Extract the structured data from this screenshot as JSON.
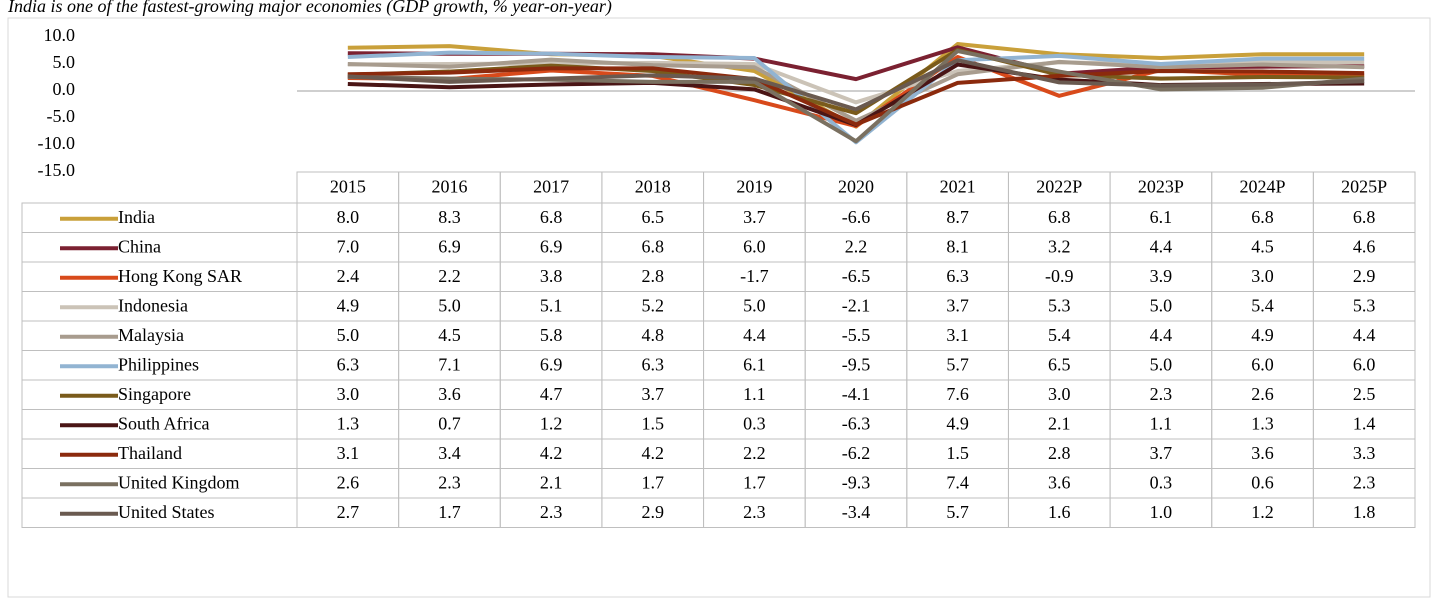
{
  "chart_data": {
    "type": "line",
    "title": "India is one of the fastest-growing major economies (GDP growth, % year-on-year)",
    "categories": [
      "2015",
      "2016",
      "2017",
      "2018",
      "2019",
      "2020",
      "2021",
      "2022P",
      "2023P",
      "2024P",
      "2025P"
    ],
    "ylim": [
      -15,
      10
    ],
    "yticks": [
      {
        "value": -15,
        "label": "-15.0"
      },
      {
        "value": -10,
        "label": "-10.0"
      },
      {
        "value": -5,
        "label": "-5.0"
      },
      {
        "value": 0,
        "label": "0.0"
      },
      {
        "value": 5,
        "label": "5.0"
      },
      {
        "value": 10,
        "label": "10.0"
      }
    ],
    "series": [
      {
        "name": "India",
        "color": "#c9a03a",
        "values": [
          8.0,
          8.3,
          6.8,
          6.5,
          3.7,
          -6.6,
          8.7,
          6.8,
          6.1,
          6.8,
          6.8
        ],
        "value_labels": [
          "8.0",
          "8.3",
          "6.8",
          "6.5",
          "3.7",
          "-6.6",
          "8.7",
          "6.8",
          "6.1",
          "6.8",
          "6.8"
        ]
      },
      {
        "name": "China",
        "color": "#7b2131",
        "values": [
          7.0,
          6.9,
          6.9,
          6.8,
          6.0,
          2.2,
          8.1,
          3.2,
          4.4,
          4.5,
          4.6
        ],
        "value_labels": [
          "7.0",
          "6.9",
          "6.9",
          "6.8",
          "6.0",
          "2.2",
          "8.1",
          "3.2",
          "4.4",
          "4.5",
          "4.6"
        ]
      },
      {
        "name": "Hong Kong SAR",
        "color": "#d84a1b",
        "values": [
          2.4,
          2.2,
          3.8,
          2.8,
          -1.7,
          -6.5,
          6.3,
          -0.9,
          3.9,
          3.0,
          2.9
        ],
        "value_labels": [
          "2.4",
          "2.2",
          "3.8",
          "2.8",
          "-1.7",
          "-6.5",
          "6.3",
          "-0.9",
          "3.9",
          "3.0",
          "2.9"
        ]
      },
      {
        "name": "Indonesia",
        "color": "#cbc3b7",
        "values": [
          4.9,
          5.0,
          5.1,
          5.2,
          5.0,
          -2.1,
          3.7,
          5.3,
          5.0,
          5.4,
          5.3
        ],
        "value_labels": [
          "4.9",
          "5.0",
          "5.1",
          "5.2",
          "5.0",
          "-2.1",
          "3.7",
          "5.3",
          "5.0",
          "5.4",
          "5.3"
        ]
      },
      {
        "name": "Malaysia",
        "color": "#a89c8e",
        "values": [
          5.0,
          4.5,
          5.8,
          4.8,
          4.4,
          -5.5,
          3.1,
          5.4,
          4.4,
          4.9,
          4.4
        ],
        "value_labels": [
          "5.0",
          "4.5",
          "5.8",
          "4.8",
          "4.4",
          "-5.5",
          "3.1",
          "5.4",
          "4.4",
          "4.9",
          "4.4"
        ]
      },
      {
        "name": "Philippines",
        "color": "#92b4d2",
        "values": [
          6.3,
          7.1,
          6.9,
          6.3,
          6.1,
          -9.5,
          5.7,
          6.5,
          5.0,
          6.0,
          6.0
        ],
        "value_labels": [
          "6.3",
          "7.1",
          "6.9",
          "6.3",
          "6.1",
          "-9.5",
          "5.7",
          "6.5",
          "5.0",
          "6.0",
          "6.0"
        ]
      },
      {
        "name": "Singapore",
        "color": "#7a5b1b",
        "values": [
          3.0,
          3.6,
          4.7,
          3.7,
          1.1,
          -4.1,
          7.6,
          3.0,
          2.3,
          2.6,
          2.5
        ],
        "value_labels": [
          "3.0",
          "3.6",
          "4.7",
          "3.7",
          "1.1",
          "-4.1",
          "7.6",
          "3.0",
          "2.3",
          "2.6",
          "2.5"
        ]
      },
      {
        "name": "South Africa",
        "color": "#4a1515",
        "values": [
          1.3,
          0.7,
          1.2,
          1.5,
          0.3,
          -6.3,
          4.9,
          2.1,
          1.1,
          1.3,
          1.4
        ],
        "value_labels": [
          "1.3",
          "0.7",
          "1.2",
          "1.5",
          "0.3",
          "-6.3",
          "4.9",
          "2.1",
          "1.1",
          "1.3",
          "1.4"
        ]
      },
      {
        "name": "Thailand",
        "color": "#8b2a0d",
        "values": [
          3.1,
          3.4,
          4.2,
          4.2,
          2.2,
          -6.2,
          1.5,
          2.8,
          3.7,
          3.6,
          3.3
        ],
        "value_labels": [
          "3.1",
          "3.4",
          "4.2",
          "4.2",
          "2.2",
          "-6.2",
          "1.5",
          "2.8",
          "3.7",
          "3.6",
          "3.3"
        ]
      },
      {
        "name": "United Kingdom",
        "color": "#7a7060",
        "values": [
          2.6,
          2.3,
          2.1,
          1.7,
          1.7,
          -9.3,
          7.4,
          3.6,
          0.3,
          0.6,
          2.3
        ],
        "value_labels": [
          "2.6",
          "2.3",
          "2.1",
          "1.7",
          "1.7",
          "-9.3",
          "7.4",
          "3.6",
          "0.3",
          "0.6",
          "2.3"
        ]
      },
      {
        "name": "United States",
        "color": "#6a5a50",
        "values": [
          2.7,
          1.7,
          2.3,
          2.9,
          2.3,
          -3.4,
          5.7,
          1.6,
          1.0,
          1.2,
          1.8
        ],
        "value_labels": [
          "2.7",
          "1.7",
          "2.3",
          "2.9",
          "2.3",
          "-3.4",
          "5.7",
          "1.6",
          "1.0",
          "1.2",
          "1.8"
        ]
      }
    ]
  }
}
